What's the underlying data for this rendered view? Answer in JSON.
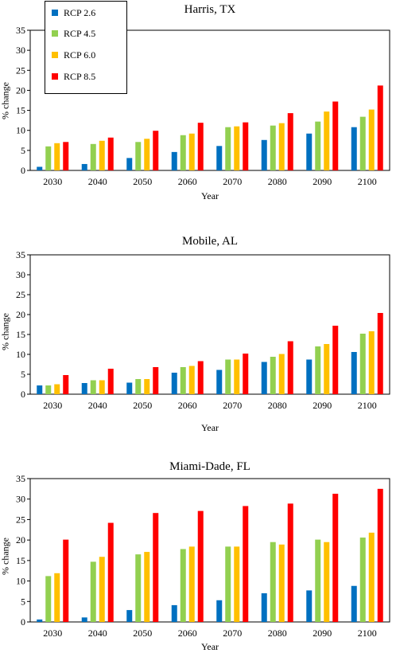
{
  "chart_data": [
    {
      "type": "bar",
      "title": "Harris, TX",
      "xlabel": "Year",
      "ylabel": "% change",
      "ylim": [
        0,
        35
      ],
      "yticks": [
        0,
        5,
        10,
        15,
        20,
        25,
        30,
        35
      ],
      "grid": false,
      "legend": "top-left",
      "categories": [
        "2030",
        "2040",
        "2050",
        "2060",
        "2070",
        "2080",
        "2090",
        "2100"
      ],
      "series": [
        {
          "name": "RCP 2.6",
          "color": "#0070C0",
          "values": [
            0.9,
            1.6,
            3.1,
            4.6,
            6.1,
            7.6,
            9.2,
            10.8
          ]
        },
        {
          "name": "RCP 4.5",
          "color": "#92D050",
          "values": [
            6.0,
            6.6,
            7.1,
            8.8,
            10.8,
            11.2,
            12.2,
            13.4
          ]
        },
        {
          "name": "RCP 6.0",
          "color": "#FFC000",
          "values": [
            6.8,
            7.4,
            7.9,
            9.2,
            11.0,
            11.8,
            14.7,
            15.2
          ]
        },
        {
          "name": "RCP 8.5",
          "color": "#FF0000",
          "values": [
            7.1,
            8.2,
            9.9,
            11.9,
            12.0,
            14.3,
            17.2,
            21.2
          ]
        }
      ]
    },
    {
      "type": "bar",
      "title": "Mobile, AL",
      "xlabel": "Year",
      "ylabel": "% change",
      "ylim": [
        0,
        35
      ],
      "yticks": [
        0,
        5,
        10,
        15,
        20,
        25,
        30,
        35
      ],
      "grid": false,
      "categories": [
        "2030",
        "2040",
        "2050",
        "2060",
        "2070",
        "2080",
        "2090",
        "2100"
      ],
      "series": [
        {
          "name": "RCP 2.6",
          "color": "#0070C0",
          "values": [
            2.2,
            2.8,
            2.9,
            5.4,
            6.1,
            8.1,
            8.7,
            10.6
          ]
        },
        {
          "name": "RCP 4.5",
          "color": "#92D050",
          "values": [
            2.2,
            3.5,
            3.8,
            6.8,
            8.7,
            9.4,
            12.0,
            15.2
          ]
        },
        {
          "name": "RCP 6.0",
          "color": "#FFC000",
          "values": [
            2.5,
            3.5,
            3.8,
            7.1,
            8.7,
            10.1,
            12.6,
            15.8
          ]
        },
        {
          "name": "RCP 8.5",
          "color": "#FF0000",
          "values": [
            4.8,
            6.4,
            6.8,
            8.3,
            10.2,
            13.3,
            17.2,
            20.4
          ]
        }
      ]
    },
    {
      "type": "bar",
      "title": "Miami-Dade, FL",
      "xlabel": "Year",
      "ylabel": "% change",
      "ylim": [
        0,
        35
      ],
      "yticks": [
        0,
        5,
        10,
        15,
        20,
        25,
        30,
        35
      ],
      "grid": false,
      "categories": [
        "2030",
        "2040",
        "2050",
        "2060",
        "2070",
        "2080",
        "2090",
        "2100"
      ],
      "series": [
        {
          "name": "RCP 2.6",
          "color": "#0070C0",
          "values": [
            0.6,
            1.1,
            2.9,
            4.1,
            5.3,
            7.0,
            7.7,
            8.8
          ]
        },
        {
          "name": "RCP 4.5",
          "color": "#92D050",
          "values": [
            11.2,
            14.7,
            16.5,
            17.8,
            18.4,
            19.5,
            20.1,
            20.6
          ]
        },
        {
          "name": "RCP 6.0",
          "color": "#FFC000",
          "values": [
            11.9,
            15.9,
            17.1,
            18.4,
            18.4,
            18.9,
            19.5,
            21.8
          ]
        },
        {
          "name": "RCP 8.5",
          "color": "#FF0000",
          "values": [
            20.1,
            24.2,
            26.6,
            27.1,
            28.3,
            28.9,
            31.3,
            32.5
          ]
        }
      ]
    }
  ]
}
